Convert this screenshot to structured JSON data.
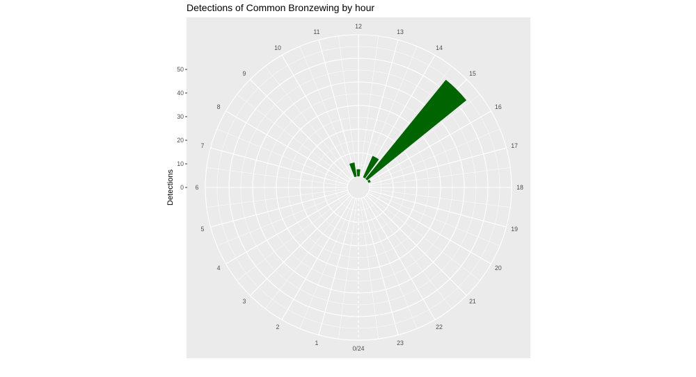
{
  "chart_data": {
    "type": "bar",
    "coordinate_system": "polar",
    "title": "Detections of Common Bronzewing by hour",
    "ylabel": "Detections",
    "xlabel": "",
    "categories": [
      "0/24",
      "1",
      "2",
      "3",
      "4",
      "5",
      "6",
      "7",
      "8",
      "9",
      "10",
      "11",
      "12",
      "13",
      "14",
      "15",
      "16",
      "17",
      "18",
      "19",
      "20",
      "21",
      "22",
      "23"
    ],
    "values": [
      0,
      0,
      0,
      0,
      0,
      0,
      0,
      0,
      0,
      0,
      0,
      6,
      3,
      0,
      10,
      54,
      1,
      0,
      0,
      0,
      0,
      0,
      0,
      0
    ],
    "y_ticks": [
      "0",
      "10",
      "20",
      "30",
      "40",
      "50"
    ],
    "ylim": [
      0,
      60
    ],
    "grid": true,
    "colors": {
      "bar": "#006400",
      "panel": "#ebebeb",
      "grid": "#ffffff"
    }
  }
}
